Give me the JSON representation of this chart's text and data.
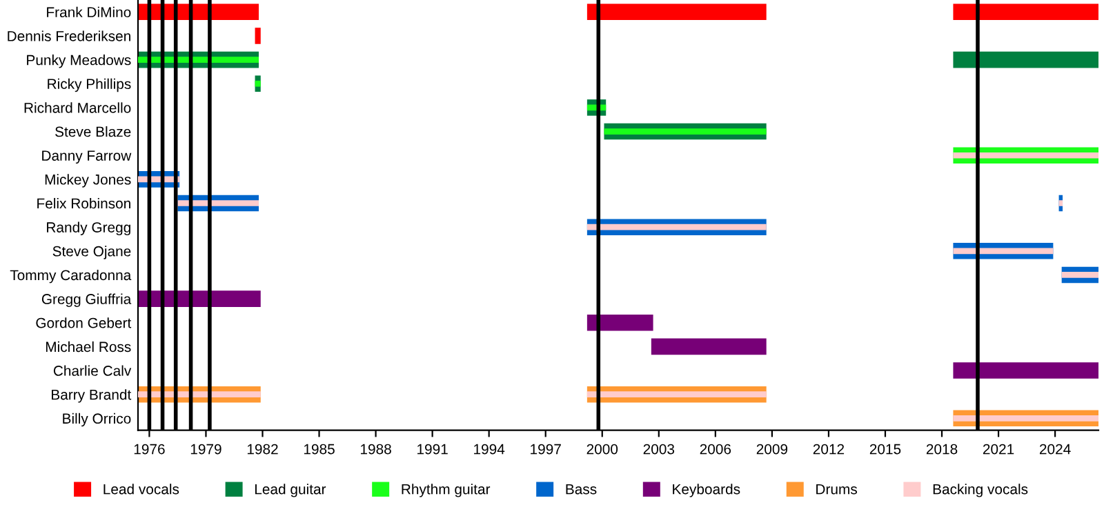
{
  "chart_data": {
    "type": "bar",
    "orientation": "horizontal",
    "categories": [
      "Frank DiMino",
      "Dennis Frederiksen",
      "Punky Meadows",
      "Ricky Phillips",
      "Richard Marcello",
      "Steve Blaze",
      "Danny Farrow",
      "Mickey Jones",
      "Felix Robinson",
      "Randy Gregg",
      "Steve Ojane",
      "Tommy Caradonna",
      "Gregg Giuffria",
      "Gordon Gebert",
      "Michael Ross",
      "Charlie Calv",
      "Barry Brandt",
      "Billy Orrico"
    ],
    "series": [
      {
        "name": "Lead vocals",
        "color": "#ff0000",
        "base": [
          1975.4,
          1981.6,
          null,
          null,
          null,
          null,
          null,
          null,
          null,
          null,
          null,
          null,
          null,
          null,
          null,
          null,
          null,
          null
        ],
        "values": [
          6.4,
          0.3,
          null,
          null,
          null,
          null,
          null,
          null,
          null,
          null,
          null,
          null,
          null,
          null,
          null,
          null,
          null,
          null
        ]
      },
      {
        "color": "#ff0000",
        "base": [
          1999.2,
          null,
          null,
          null,
          null,
          null,
          null,
          null,
          null,
          null,
          null,
          null,
          null,
          null,
          null,
          null,
          null,
          null
        ],
        "values": [
          9.5,
          null,
          null,
          null,
          null,
          null,
          null,
          null,
          null,
          null,
          null,
          null,
          null,
          null,
          null,
          null,
          null,
          null
        ]
      },
      {
        "color": "#ff0000",
        "base": [
          2018.6,
          null,
          null,
          null,
          null,
          null,
          null,
          null,
          null,
          null,
          null,
          null,
          null,
          null,
          null,
          null,
          null,
          null
        ],
        "values": [
          7.7,
          null,
          null,
          null,
          null,
          null,
          null,
          null,
          null,
          null,
          null,
          null,
          null,
          null,
          null,
          null,
          null,
          null
        ]
      },
      {
        "name": "Lead guitar",
        "color": "#008040",
        "base": [
          null,
          null,
          1975.4,
          1981.6,
          1999.2,
          2000.1,
          null,
          null,
          null,
          null,
          null,
          null,
          null,
          null,
          null,
          null,
          null,
          null
        ],
        "values": [
          null,
          null,
          6.4,
          0.3,
          1.0,
          8.6,
          null,
          null,
          null,
          null,
          null,
          null,
          null,
          null,
          null,
          null,
          null,
          null
        ]
      },
      {
        "color": "#008040",
        "base": [
          null,
          null,
          2018.6,
          null,
          null,
          null,
          null,
          null,
          null,
          null,
          null,
          null,
          null,
          null,
          null,
          null,
          null,
          null
        ],
        "values": [
          null,
          null,
          7.7,
          null,
          null,
          null,
          null,
          null,
          null,
          null,
          null,
          null,
          null,
          null,
          null,
          null,
          null,
          null
        ]
      },
      {
        "name": "Rhythm guitar",
        "color": "#1aff1a",
        "base": [
          null,
          null,
          1975.4,
          1981.6,
          1999.2,
          2000.1,
          2018.6,
          null,
          null,
          null,
          null,
          null,
          null,
          null,
          null,
          null,
          null,
          null
        ],
        "values": [
          null,
          null,
          6.4,
          0.3,
          1.0,
          8.6,
          7.7,
          null,
          null,
          null,
          null,
          null,
          null,
          null,
          null,
          null,
          null,
          null
        ]
      },
      {
        "name": "Bass",
        "color": "#0066cc",
        "base": [
          null,
          null,
          null,
          null,
          null,
          null,
          null,
          1975.4,
          1977.5,
          1999.2,
          2018.6,
          2024.35,
          null,
          null,
          null,
          null,
          null,
          null
        ],
        "values": [
          null,
          null,
          null,
          null,
          null,
          null,
          null,
          2.2,
          4.3,
          9.5,
          5.3,
          1.95,
          null,
          null,
          null,
          null,
          null,
          null
        ]
      },
      {
        "color": "#0066cc",
        "base": [
          null,
          null,
          null,
          null,
          null,
          null,
          null,
          null,
          2024.2,
          null,
          null,
          null,
          null,
          null,
          null,
          null,
          null,
          null
        ],
        "values": [
          null,
          null,
          null,
          null,
          null,
          null,
          null,
          null,
          0.2,
          null,
          null,
          null,
          null,
          null,
          null,
          null,
          null,
          null
        ]
      },
      {
        "name": "Keyboards",
        "color": "#770077",
        "base": [
          null,
          null,
          null,
          null,
          null,
          null,
          null,
          null,
          null,
          null,
          null,
          null,
          1975.4,
          1999.2,
          2002.6,
          2018.6,
          null,
          null
        ],
        "values": [
          null,
          null,
          null,
          null,
          null,
          null,
          null,
          null,
          null,
          null,
          null,
          null,
          6.5,
          3.5,
          6.1,
          7.7,
          null,
          null
        ]
      },
      {
        "name": "Drums",
        "color": "#ff9933",
        "base": [
          null,
          null,
          null,
          null,
          null,
          null,
          null,
          null,
          null,
          null,
          null,
          null,
          null,
          null,
          null,
          null,
          1975.4,
          2018.6
        ],
        "values": [
          null,
          null,
          null,
          null,
          null,
          null,
          null,
          null,
          null,
          null,
          null,
          null,
          null,
          null,
          null,
          null,
          6.5,
          7.7
        ]
      },
      {
        "color": "#ff9933",
        "base": [
          null,
          null,
          null,
          null,
          null,
          null,
          null,
          null,
          null,
          null,
          null,
          null,
          null,
          null,
          null,
          null,
          1999.2,
          null
        ],
        "values": [
          null,
          null,
          null,
          null,
          null,
          null,
          null,
          null,
          null,
          null,
          null,
          null,
          null,
          null,
          null,
          null,
          9.5,
          null
        ]
      },
      {
        "name": "Backing vocals",
        "color": "#ffcccc",
        "base": [
          null,
          null,
          null,
          null,
          null,
          null,
          2018.6,
          1975.4,
          1977.5,
          1999.2,
          2018.6,
          2024.35,
          null,
          null,
          null,
          null,
          1975.4,
          2018.6
        ],
        "values": [
          null,
          null,
          null,
          null,
          null,
          null,
          7.7,
          2.2,
          4.3,
          9.5,
          5.3,
          1.95,
          null,
          null,
          null,
          null,
          6.5,
          7.7
        ]
      },
      {
        "color": "#ffcccc",
        "base": [
          null,
          null,
          null,
          null,
          null,
          null,
          null,
          null,
          2024.2,
          null,
          null,
          null,
          null,
          null,
          null,
          null,
          1999.2,
          null
        ],
        "values": [
          null,
          null,
          null,
          null,
          null,
          null,
          null,
          null,
          0.2,
          null,
          null,
          null,
          null,
          null,
          null,
          null,
          9.5,
          null
        ]
      }
    ],
    "xlim": [
      1975.4,
      2026.3
    ],
    "xticks": [
      1976,
      1979,
      1982,
      1985,
      1988,
      1991,
      1994,
      1997,
      2000,
      2003,
      2006,
      2009,
      2012,
      2015,
      2018,
      2021,
      2024
    ],
    "ref_lines": [
      {
        "axis": "x",
        "value": 1976.0,
        "color": "#000000"
      },
      {
        "axis": "x",
        "value": 1976.7,
        "color": "#000000"
      },
      {
        "axis": "x",
        "value": 1977.4,
        "color": "#000000"
      },
      {
        "axis": "x",
        "value": 1978.2,
        "color": "#000000"
      },
      {
        "axis": "x",
        "value": 1979.2,
        "color": "#000000"
      },
      {
        "axis": "x",
        "value": 1999.8,
        "color": "#000000"
      },
      {
        "axis": "x",
        "value": 2019.9,
        "color": "#000000"
      }
    ],
    "grid": false,
    "legend": "bottom"
  }
}
